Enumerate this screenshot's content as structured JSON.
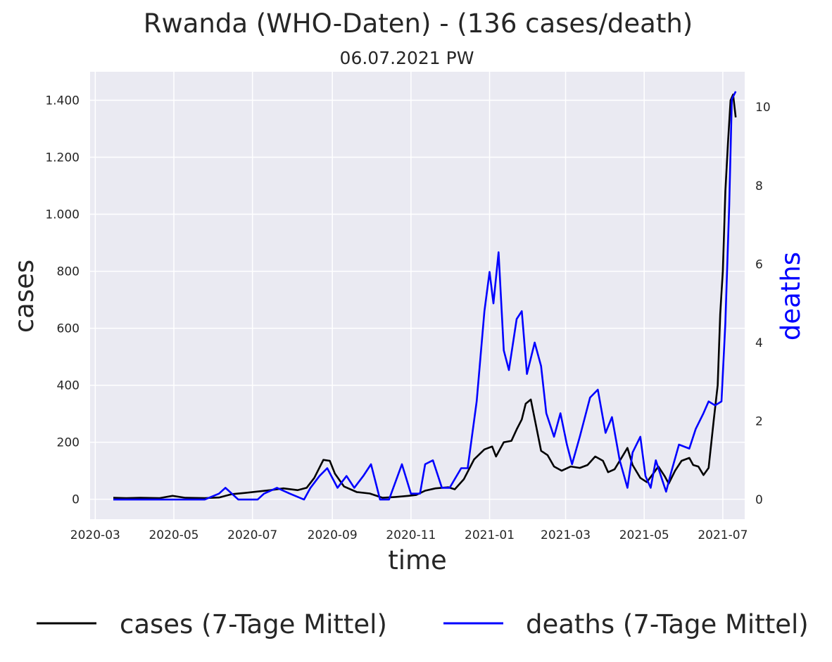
{
  "chart_data": {
    "type": "line",
    "title": "Rwanda (WHO-Daten) - (136 cases/death)",
    "subtitle": "06.07.2021 PW",
    "xlabel": "time",
    "ylabel": "cases",
    "ylabel_right": "deaths",
    "xlim": [
      "2020-02-26",
      "2021-07-18"
    ],
    "ylim": [
      -70,
      1500
    ],
    "ylim_right": [
      -0.5,
      10.9
    ],
    "x_ticks": [
      "2020-03",
      "2020-05",
      "2020-07",
      "2020-09",
      "2020-11",
      "2021-01",
      "2021-03",
      "2021-05",
      "2021-07"
    ],
    "y_ticks": [
      {
        "value": 0,
        "label": "0"
      },
      {
        "value": 200,
        "label": "200"
      },
      {
        "value": 400,
        "label": "400"
      },
      {
        "value": 600,
        "label": "600"
      },
      {
        "value": 800,
        "label": "800"
      },
      {
        "value": 1000,
        "label": "1.000"
      },
      {
        "value": 1200,
        "label": "1.200"
      },
      {
        "value": 1400,
        "label": "1.400"
      }
    ],
    "y_ticks_right": [
      {
        "value": 0,
        "label": "0"
      },
      {
        "value": 2,
        "label": "2"
      },
      {
        "value": 4,
        "label": "4"
      },
      {
        "value": 6,
        "label": "6"
      },
      {
        "value": 8,
        "label": "8"
      },
      {
        "value": 10,
        "label": "10"
      }
    ],
    "grid": true,
    "legend_position": "bottom",
    "background_color": "#eaeaf2",
    "series": [
      {
        "name": "cases (7-Tage Mittel)",
        "axis": "left",
        "color": "#000000",
        "points": [
          [
            "2020-03-15",
            5
          ],
          [
            "2020-03-25",
            4
          ],
          [
            "2020-04-05",
            5
          ],
          [
            "2020-04-20",
            4
          ],
          [
            "2020-04-30",
            12
          ],
          [
            "2020-05-10",
            5
          ],
          [
            "2020-05-25",
            4
          ],
          [
            "2020-06-05",
            6
          ],
          [
            "2020-06-15",
            18
          ],
          [
            "2020-06-25",
            22
          ],
          [
            "2020-07-05",
            27
          ],
          [
            "2020-07-15",
            32
          ],
          [
            "2020-07-25",
            38
          ],
          [
            "2020-08-05",
            32
          ],
          [
            "2020-08-12",
            40
          ],
          [
            "2020-08-18",
            75
          ],
          [
            "2020-08-25",
            138
          ],
          [
            "2020-08-30",
            135
          ],
          [
            "2020-09-03",
            90
          ],
          [
            "2020-09-10",
            45
          ],
          [
            "2020-09-20",
            25
          ],
          [
            "2020-09-30",
            20
          ],
          [
            "2020-10-10",
            5
          ],
          [
            "2020-10-20",
            8
          ],
          [
            "2020-10-30",
            12
          ],
          [
            "2020-11-05",
            15
          ],
          [
            "2020-11-12",
            30
          ],
          [
            "2020-11-20",
            38
          ],
          [
            "2020-11-30",
            42
          ],
          [
            "2020-12-05",
            35
          ],
          [
            "2020-12-12",
            70
          ],
          [
            "2020-12-20",
            140
          ],
          [
            "2020-12-28",
            175
          ],
          [
            "2021-01-03",
            185
          ],
          [
            "2021-01-06",
            150
          ],
          [
            "2021-01-12",
            200
          ],
          [
            "2021-01-18",
            205
          ],
          [
            "2021-01-22",
            245
          ],
          [
            "2021-01-26",
            280
          ],
          [
            "2021-01-29",
            335
          ],
          [
            "2021-02-02",
            350
          ],
          [
            "2021-02-06",
            260
          ],
          [
            "2021-02-10",
            170
          ],
          [
            "2021-02-15",
            155
          ],
          [
            "2021-02-20",
            115
          ],
          [
            "2021-02-26",
            100
          ],
          [
            "2021-03-05",
            115
          ],
          [
            "2021-03-12",
            110
          ],
          [
            "2021-03-18",
            120
          ],
          [
            "2021-03-24",
            150
          ],
          [
            "2021-03-30",
            135
          ],
          [
            "2021-04-03",
            95
          ],
          [
            "2021-04-08",
            105
          ],
          [
            "2021-04-14",
            150
          ],
          [
            "2021-04-18",
            180
          ],
          [
            "2021-04-22",
            120
          ],
          [
            "2021-04-28",
            75
          ],
          [
            "2021-05-03",
            60
          ],
          [
            "2021-05-08",
            90
          ],
          [
            "2021-05-12",
            115
          ],
          [
            "2021-05-17",
            80
          ],
          [
            "2021-05-20",
            55
          ],
          [
            "2021-05-25",
            100
          ],
          [
            "2021-05-30",
            135
          ],
          [
            "2021-06-05",
            145
          ],
          [
            "2021-06-08",
            120
          ],
          [
            "2021-06-12",
            115
          ],
          [
            "2021-06-16",
            85
          ],
          [
            "2021-06-20",
            110
          ],
          [
            "2021-06-24",
            280
          ],
          [
            "2021-06-27",
            400
          ],
          [
            "2021-06-29",
            650
          ],
          [
            "2021-07-01",
            800
          ],
          [
            "2021-07-03",
            1080
          ],
          [
            "2021-07-05",
            1250
          ],
          [
            "2021-07-07",
            1400
          ],
          [
            "2021-07-09",
            1420
          ],
          [
            "2021-07-11",
            1340
          ]
        ]
      },
      {
        "name": "deaths (7-Tage Mittel)",
        "axis": "right",
        "color": "#0000ff",
        "points": [
          [
            "2020-03-15",
            0
          ],
          [
            "2020-04-15",
            0
          ],
          [
            "2020-05-25",
            0
          ],
          [
            "2020-06-05",
            0.15
          ],
          [
            "2020-06-10",
            0.3
          ],
          [
            "2020-06-15",
            0.15
          ],
          [
            "2020-06-20",
            0
          ],
          [
            "2020-07-05",
            0
          ],
          [
            "2020-07-10",
            0.15
          ],
          [
            "2020-07-20",
            0.3
          ],
          [
            "2020-07-30",
            0.15
          ],
          [
            "2020-08-10",
            0
          ],
          [
            "2020-08-15",
            0.3
          ],
          [
            "2020-08-22",
            0.6
          ],
          [
            "2020-08-28",
            0.8
          ],
          [
            "2020-09-05",
            0.3
          ],
          [
            "2020-09-12",
            0.6
          ],
          [
            "2020-09-18",
            0.3
          ],
          [
            "2020-09-25",
            0.6
          ],
          [
            "2020-10-01",
            0.9
          ],
          [
            "2020-10-08",
            0
          ],
          [
            "2020-10-15",
            0
          ],
          [
            "2020-10-25",
            0.9
          ],
          [
            "2020-11-01",
            0.15
          ],
          [
            "2020-11-08",
            0.15
          ],
          [
            "2020-11-12",
            0.9
          ],
          [
            "2020-11-18",
            1.0
          ],
          [
            "2020-11-25",
            0.3
          ],
          [
            "2020-12-01",
            0.3
          ],
          [
            "2020-12-10",
            0.8
          ],
          [
            "2020-12-15",
            0.8
          ],
          [
            "2020-12-22",
            2.5
          ],
          [
            "2020-12-28",
            4.8
          ],
          [
            "2021-01-01",
            5.8
          ],
          [
            "2021-01-04",
            5.0
          ],
          [
            "2021-01-08",
            6.3
          ],
          [
            "2021-01-12",
            3.8
          ],
          [
            "2021-01-16",
            3.3
          ],
          [
            "2021-01-22",
            4.6
          ],
          [
            "2021-01-26",
            4.8
          ],
          [
            "2021-01-30",
            3.2
          ],
          [
            "2021-02-05",
            4.0
          ],
          [
            "2021-02-10",
            3.4
          ],
          [
            "2021-02-14",
            2.2
          ],
          [
            "2021-02-20",
            1.6
          ],
          [
            "2021-02-25",
            2.2
          ],
          [
            "2021-03-02",
            1.4
          ],
          [
            "2021-03-06",
            0.9
          ],
          [
            "2021-03-12",
            1.6
          ],
          [
            "2021-03-20",
            2.6
          ],
          [
            "2021-03-26",
            2.8
          ],
          [
            "2021-04-01",
            1.7
          ],
          [
            "2021-04-06",
            2.1
          ],
          [
            "2021-04-12",
            1.0
          ],
          [
            "2021-04-18",
            0.3
          ],
          [
            "2021-04-22",
            1.2
          ],
          [
            "2021-04-28",
            1.6
          ],
          [
            "2021-05-02",
            0.6
          ],
          [
            "2021-05-06",
            0.3
          ],
          [
            "2021-05-10",
            1.0
          ],
          [
            "2021-05-15",
            0.5
          ],
          [
            "2021-05-18",
            0.2
          ],
          [
            "2021-05-22",
            0.7
          ],
          [
            "2021-05-28",
            1.4
          ],
          [
            "2021-06-05",
            1.3
          ],
          [
            "2021-06-10",
            1.8
          ],
          [
            "2021-06-16",
            2.2
          ],
          [
            "2021-06-20",
            2.5
          ],
          [
            "2021-06-25",
            2.4
          ],
          [
            "2021-06-30",
            2.5
          ],
          [
            "2021-07-03",
            4.5
          ],
          [
            "2021-07-06",
            7.5
          ],
          [
            "2021-07-08",
            10.2
          ],
          [
            "2021-07-11",
            10.4
          ]
        ]
      }
    ]
  }
}
